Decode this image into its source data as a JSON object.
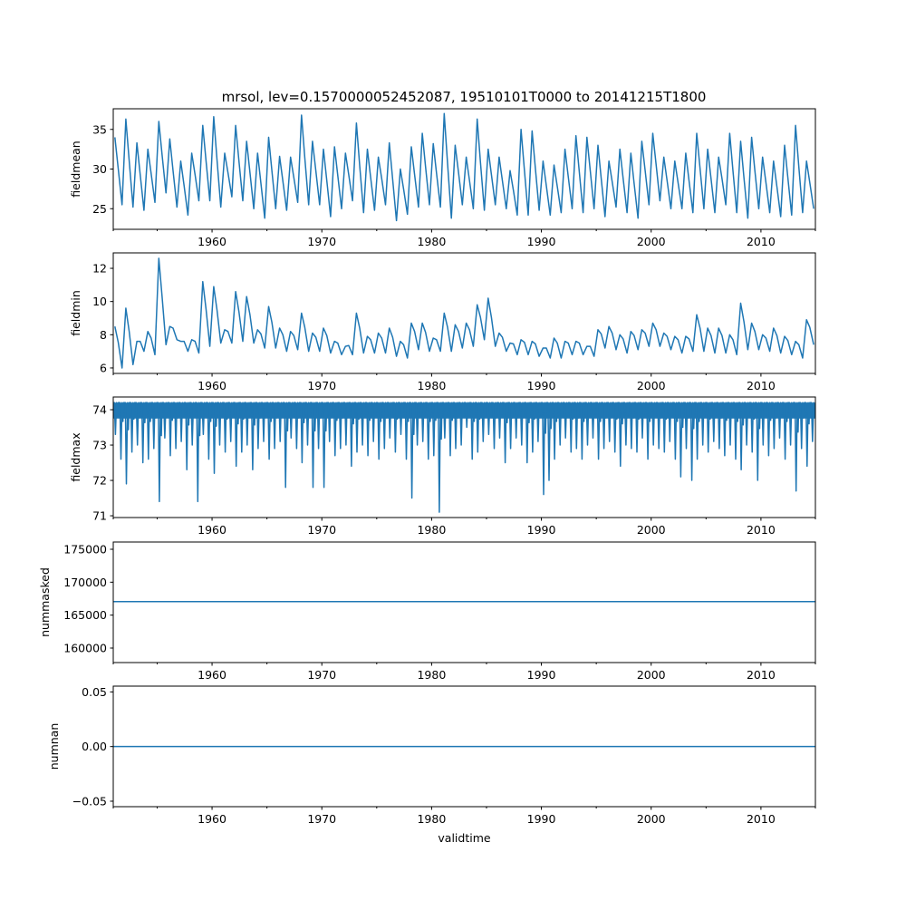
{
  "title": "mrsol, lev=0.1570000052452087, 19510101T0000 to 20141215T1800",
  "chart_data": [
    {
      "type": "line",
      "ylabel": "fieldmean",
      "xlim": [
        1951.0,
        2014.96
      ],
      "ylim": [
        22.4,
        37.6
      ],
      "yticks": [
        25,
        30,
        35
      ],
      "ytick_labels": [
        "25",
        "30",
        "35"
      ],
      "xticks": [
        1960,
        1970,
        1980,
        1990,
        2000,
        2010
      ],
      "xtick_labels": [
        "1960",
        "1970",
        "1980",
        "1990",
        "2000",
        "2010"
      ],
      "color": "#1f77b4",
      "years": [
        1951,
        1952,
        1953,
        1954,
        1955,
        1956,
        1957,
        1958,
        1959,
        1960,
        1961,
        1962,
        1963,
        1964,
        1965,
        1966,
        1967,
        1968,
        1969,
        1970,
        1971,
        1972,
        1973,
        1974,
        1975,
        1976,
        1977,
        1978,
        1979,
        1980,
        1981,
        1982,
        1983,
        1984,
        1985,
        1986,
        1987,
        1988,
        1989,
        1990,
        1991,
        1992,
        1993,
        1994,
        1995,
        1996,
        1997,
        1998,
        1999,
        2000,
        2001,
        2002,
        2003,
        2004,
        2005,
        2006,
        2007,
        2008,
        2009,
        2010,
        2011,
        2012,
        2013,
        2014
      ],
      "annual_peak": [
        34,
        36.3,
        33.3,
        32.5,
        36,
        33.8,
        31,
        32,
        35.5,
        36.6,
        32,
        35.5,
        33.5,
        32,
        34,
        31.6,
        31.5,
        36.8,
        33.5,
        32.5,
        32.8,
        32,
        35.8,
        32.5,
        31.5,
        33.3,
        30,
        32.8,
        34.5,
        33.2,
        37,
        33,
        31.5,
        36.3,
        32.5,
        31.5,
        29.8,
        35,
        34.8,
        31,
        30.5,
        32.5,
        34.2,
        34,
        33,
        31,
        32.5,
        32,
        33.5,
        34.5,
        31.5,
        31,
        32,
        34.5,
        32.5,
        31.5,
        34.5,
        33.5,
        34,
        31.5,
        31,
        33,
        35.5,
        31
      ],
      "annual_trough": [
        25.5,
        25.2,
        24.8,
        25.8,
        27,
        25.2,
        24.2,
        26,
        26,
        25.2,
        26.5,
        26,
        25,
        23.8,
        25,
        24.8,
        25.8,
        25.5,
        25.5,
        24,
        25,
        26,
        24.5,
        24.8,
        25.5,
        23.5,
        24.3,
        25.2,
        25.5,
        25.2,
        23.8,
        25.5,
        25,
        24.8,
        25.5,
        25,
        24.2,
        24.2,
        24.8,
        24.2,
        24.5,
        25,
        24.5,
        25,
        24,
        25.2,
        24.5,
        23.8,
        25.5,
        26,
        25,
        25,
        24.5,
        25,
        24.5,
        25.5,
        24.5,
        23.8,
        25,
        24.5,
        24,
        24.2,
        24.5,
        25
      ]
    },
    {
      "type": "line",
      "ylabel": "fieldmin",
      "xlim": [
        1951.0,
        2014.96
      ],
      "ylim": [
        5.67,
        12.93
      ],
      "yticks": [
        6,
        8,
        10,
        12
      ],
      "ytick_labels": [
        "6",
        "8",
        "10",
        "12"
      ],
      "xticks": [
        1960,
        1970,
        1980,
        1990,
        2000,
        2010
      ],
      "xtick_labels": [
        "1960",
        "1970",
        "1980",
        "1990",
        "2000",
        "2010"
      ],
      "color": "#1f77b4",
      "years": [
        1951,
        1952,
        1953,
        1954,
        1955,
        1956,
        1957,
        1958,
        1959,
        1960,
        1961,
        1962,
        1963,
        1964,
        1965,
        1966,
        1967,
        1968,
        1969,
        1970,
        1971,
        1972,
        1973,
        1974,
        1975,
        1976,
        1977,
        1978,
        1979,
        1980,
        1981,
        1982,
        1983,
        1984,
        1985,
        1986,
        1987,
        1988,
        1989,
        1990,
        1991,
        1992,
        1993,
        1994,
        1995,
        1996,
        1997,
        1998,
        1999,
        2000,
        2001,
        2002,
        2003,
        2004,
        2005,
        2006,
        2007,
        2008,
        2009,
        2010,
        2011,
        2012,
        2013,
        2014
      ],
      "annual_peak": [
        8.5,
        9.6,
        7.6,
        8.2,
        12.6,
        8.5,
        7.6,
        7.7,
        11.2,
        10.9,
        8.3,
        10.6,
        10.3,
        8.3,
        9.7,
        8.4,
        8.2,
        9.3,
        8.1,
        8.4,
        7.6,
        7.3,
        9.3,
        7.9,
        8.1,
        8.4,
        7.6,
        8.7,
        8.7,
        7.8,
        9.3,
        8.6,
        8.7,
        9.8,
        10.2,
        8.1,
        7.5,
        7.7,
        7.6,
        7.2,
        7.8,
        7.6,
        7.6,
        7.3,
        8.3,
        8.5,
        8.0,
        8.2,
        8.3,
        8.7,
        8.1,
        7.9,
        7.9,
        9.2,
        8.4,
        8.4,
        8.0,
        9.9,
        8.7,
        8.0,
        8.4,
        7.9,
        7.6,
        8.9
      ],
      "annual_trough": [
        6.0,
        6.2,
        7.0,
        6.8,
        7.4,
        7.7,
        7.0,
        6.9,
        7.3,
        7.5,
        7.5,
        7.6,
        7.5,
        7.2,
        7.2,
        7.0,
        7.1,
        7.0,
        7.0,
        6.9,
        6.8,
        6.8,
        6.9,
        6.9,
        6.9,
        6.7,
        6.6,
        7.1,
        7.0,
        7.0,
        7.0,
        7.2,
        7.3,
        7.7,
        7.3,
        7.0,
        6.8,
        6.8,
        6.7,
        6.6,
        6.6,
        6.8,
        6.8,
        6.7,
        7.2,
        7.1,
        6.9,
        7.1,
        7.3,
        7.3,
        7.1,
        6.9,
        7.0,
        7.0,
        6.9,
        6.9,
        6.8,
        7.1,
        7.1,
        7.0,
        6.9,
        6.8,
        6.6,
        7.4
      ]
    },
    {
      "type": "line",
      "ylabel": "fieldmax",
      "xlim": [
        1951.0,
        2014.96
      ],
      "ylim": [
        70.95,
        74.36
      ],
      "yticks": [
        71,
        72,
        73,
        74
      ],
      "ytick_labels": [
        "71",
        "72",
        "73",
        "74"
      ],
      "xticks": [
        1960,
        1970,
        1980,
        1990,
        2000,
        2010
      ],
      "xtick_labels": [
        "1960",
        "1970",
        "1980",
        "1990",
        "2000",
        "2010"
      ],
      "color": "#1f77b4",
      "upper_value": 74.2,
      "start_year": 1951.0,
      "dip_step_years": 0.5,
      "dips": [
        73.3,
        72.6,
        71.9,
        72.8,
        73.0,
        72.5,
        72.6,
        72.9,
        71.4,
        73.2,
        72.7,
        72.9,
        73.1,
        72.3,
        73.0,
        71.4,
        73.3,
        72.6,
        72.2,
        73.0,
        72.8,
        73.1,
        72.4,
        72.8,
        73.0,
        72.3,
        72.9,
        73.1,
        72.6,
        72.9,
        73.1,
        71.8,
        73.2,
        72.9,
        72.5,
        73.0,
        71.8,
        72.9,
        71.8,
        73.1,
        72.7,
        72.9,
        73.0,
        72.4,
        72.8,
        73.0,
        72.7,
        73.1,
        72.6,
        72.9,
        73.2,
        72.8,
        73.3,
        72.6,
        71.5,
        73.0,
        73.1,
        72.6,
        72.7,
        71.1,
        73.2,
        72.7,
        72.9,
        73.0,
        73.5,
        72.6,
        72.8,
        73.1,
        73.3,
        72.9,
        73.2,
        72.5,
        72.9,
        73.2,
        73.0,
        72.5,
        72.8,
        73.1,
        71.6,
        72.0,
        72.6,
        73.0,
        73.2,
        72.8,
        72.9,
        72.6,
        73.0,
        73.2,
        72.6,
        72.9,
        73.1,
        72.8,
        72.4,
        73.0,
        72.9,
        72.8,
        73.2,
        72.6,
        73.0,
        72.9,
        72.8,
        73.1,
        72.6,
        72.1,
        72.9,
        72.0,
        72.6,
        73.0,
        72.8,
        73.1,
        72.9,
        72.7,
        73.0,
        72.6,
        72.3,
        73.0,
        72.8,
        72.0,
        73.0,
        72.7,
        72.9,
        73.2,
        72.6,
        73.0,
        71.7,
        72.9,
        72.4,
        73.1
      ]
    },
    {
      "type": "line",
      "ylabel": "nummasked",
      "xlim": [
        1951.0,
        2014.96
      ],
      "ylim": [
        157800,
        176100
      ],
      "yticks": [
        160000,
        165000,
        170000,
        175000
      ],
      "ytick_labels": [
        "160000",
        "165000",
        "170000",
        "175000"
      ],
      "xticks": [
        1960,
        1970,
        1980,
        1990,
        2000,
        2010
      ],
      "xtick_labels": [
        "1960",
        "1970",
        "1980",
        "1990",
        "2000",
        "2010"
      ],
      "color": "#1f77b4",
      "constant_value": 167060
    },
    {
      "type": "line",
      "ylabel": "numnan",
      "xlabel": "validtime",
      "xlim": [
        1951.0,
        2014.96
      ],
      "ylim": [
        -0.055,
        0.0553
      ],
      "yticks": [
        -0.05,
        0.0,
        0.05
      ],
      "ytick_labels": [
        "−0.05",
        "0.00",
        "0.05"
      ],
      "xticks": [
        1960,
        1970,
        1980,
        1990,
        2000,
        2010
      ],
      "xtick_labels": [
        "1960",
        "1970",
        "1980",
        "1990",
        "2000",
        "2010"
      ],
      "color": "#1f77b4",
      "constant_value": 0.0
    }
  ]
}
